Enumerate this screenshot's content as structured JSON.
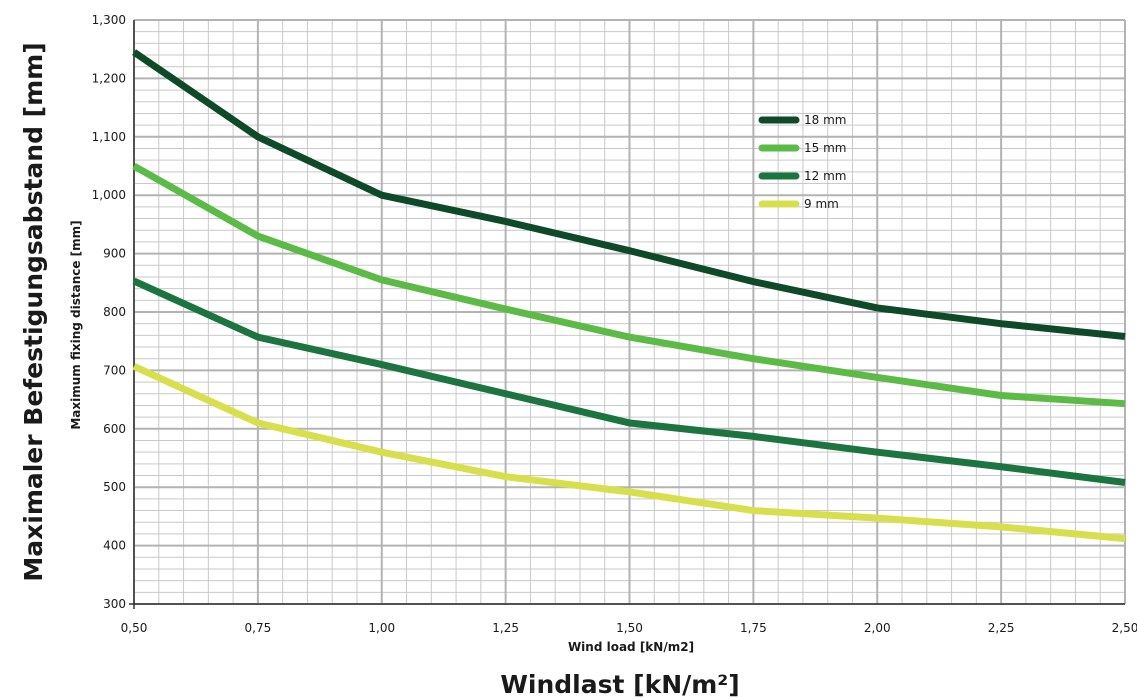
{
  "chart_data": {
    "type": "line",
    "x": [
      0.5,
      0.75,
      1.0,
      1.25,
      1.5,
      1.75,
      2.0,
      2.25,
      2.5
    ],
    "x_tick_labels": [
      "0,50",
      "0,75",
      "1,00",
      "1,25",
      "1,50",
      "1,75",
      "2,00",
      "2,25",
      "2,50"
    ],
    "y_ticks": [
      300,
      400,
      500,
      600,
      700,
      800,
      900,
      1000,
      1100,
      1200,
      1300
    ],
    "y_tick_labels": [
      "300",
      "400",
      "500",
      "600",
      "700",
      "800",
      "900",
      "1,000",
      "1,100",
      "1,200",
      "1,300"
    ],
    "xlim": [
      0.5,
      2.5
    ],
    "ylim": [
      300,
      1300
    ],
    "xlabel": "Wind load [kN/m2]",
    "xlabel_de": "Windlast [kN/m²]",
    "ylabel": "Maximum fixing distance [mm]",
    "ylabel_de": "Maximaler Befestigungsabstand [mm]",
    "grid": true,
    "legend_position": "top-right",
    "series": [
      {
        "name": "18 mm",
        "color": "#0f4a28",
        "values": [
          1245,
          1100,
          1000,
          955,
          905,
          852,
          807,
          780,
          758
        ]
      },
      {
        "name": "15 mm",
        "color": "#5cbb46",
        "values": [
          1050,
          930,
          855,
          805,
          757,
          720,
          688,
          657,
          643
        ]
      },
      {
        "name": "12 mm",
        "color": "#1c7440",
        "values": [
          853,
          757,
          710,
          660,
          610,
          587,
          560,
          535,
          508
        ]
      },
      {
        "name": "9 mm",
        "color": "#d8df4c",
        "values": [
          707,
          610,
          560,
          518,
          492,
          460,
          447,
          432,
          412
        ]
      }
    ]
  }
}
